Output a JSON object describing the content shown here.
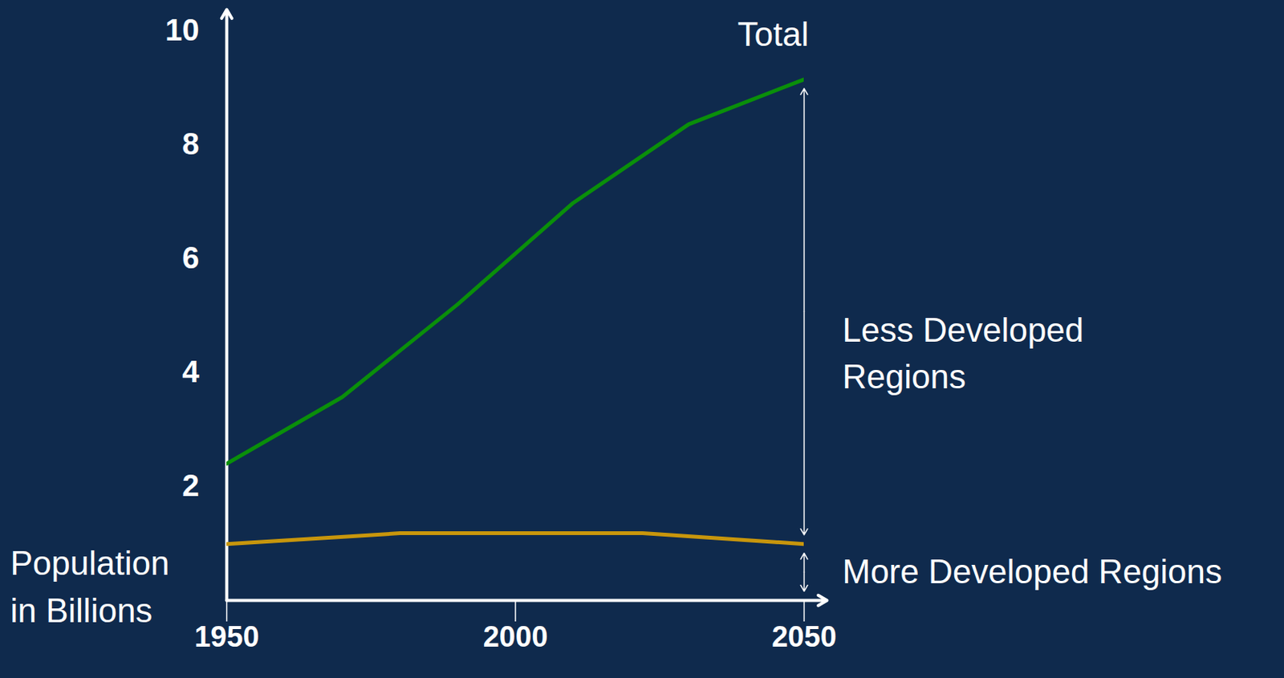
{
  "chart_data": {
    "type": "line",
    "y_label": "Population in Billions",
    "annotations": [
      "Less Developed Regions"
    ],
    "xlim": [
      1950,
      2050
    ],
    "ylim": [
      0,
      10
    ],
    "xticks": [
      1950,
      2000,
      2050
    ],
    "yticks": [
      2,
      4,
      6,
      8,
      10
    ],
    "series": [
      {
        "name": "Total",
        "color": "#0a8f0a",
        "x": [
          1950,
          1970,
          1990,
          2010,
          2030,
          2050
        ],
        "values": [
          2.4,
          3.57,
          5.2,
          6.98,
          8.36,
          9.15
        ]
      },
      {
        "name": "More Developed Regions",
        "color": "#c8960c",
        "x": [
          1950,
          1980,
          2022,
          2050
        ],
        "values": [
          0.99,
          1.18,
          1.18,
          0.99
        ]
      }
    ]
  }
}
